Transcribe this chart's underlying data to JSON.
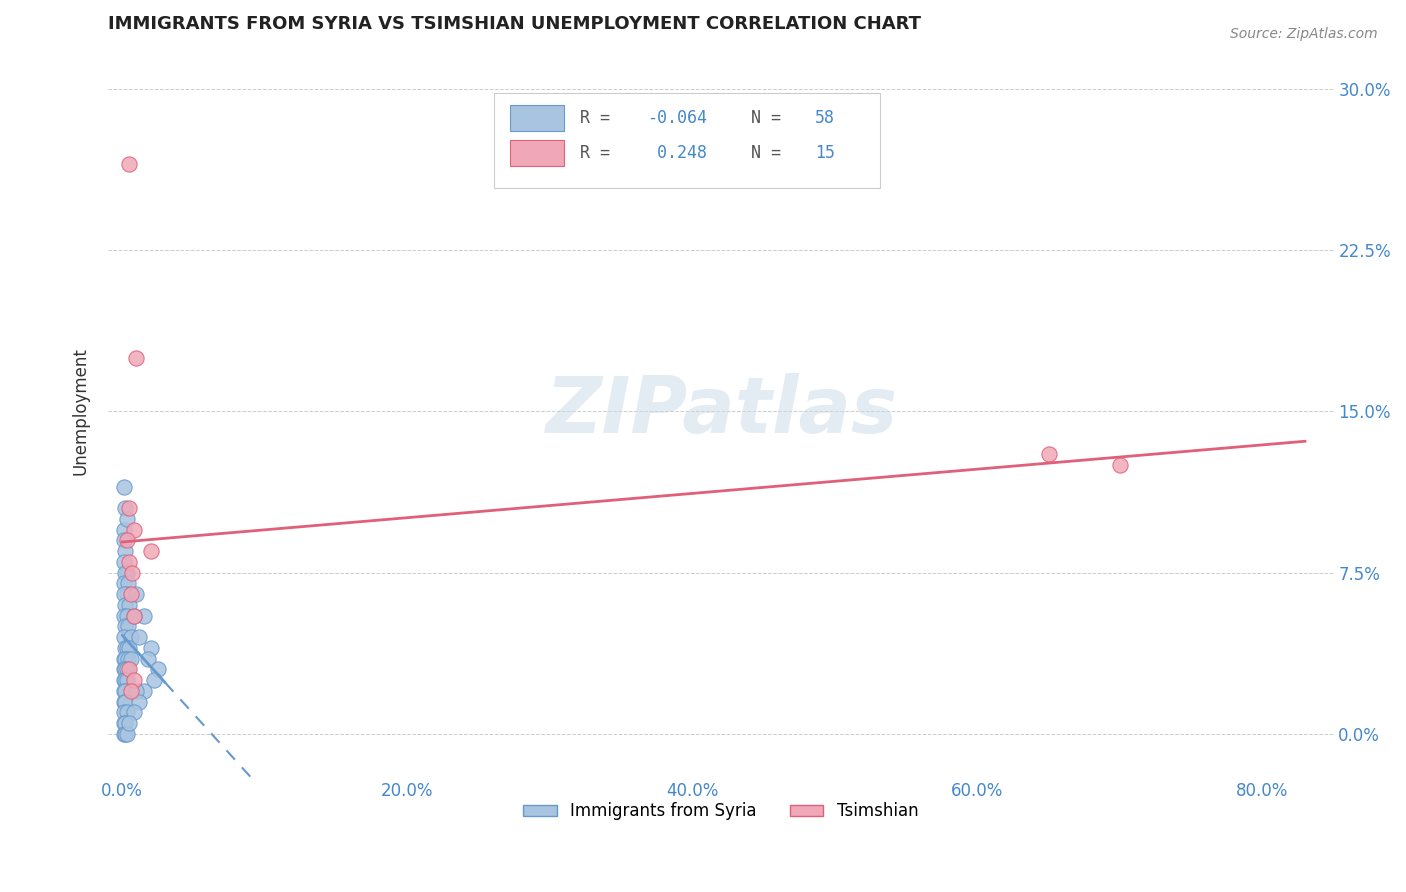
{
  "title": "IMMIGRANTS FROM SYRIA VS TSIMSHIAN UNEMPLOYMENT CORRELATION CHART",
  "source": "Source: ZipAtlas.com",
  "xlabel_tick_vals": [
    0.0,
    0.2,
    0.4,
    0.6,
    0.8
  ],
  "ylabel_tick_vals": [
    0.0,
    0.075,
    0.15,
    0.225,
    0.3
  ],
  "ylim": [
    -0.02,
    0.32
  ],
  "xlim": [
    -0.01,
    0.85
  ],
  "blue_color": "#a8c4e0",
  "pink_color": "#f0a8b8",
  "blue_line_color": "#6699cc",
  "pink_line_color": "#e0607a",
  "blue_scatter": [
    [
      0.001,
      0.115
    ],
    [
      0.002,
      0.105
    ],
    [
      0.001,
      0.095
    ],
    [
      0.003,
      0.1
    ],
    [
      0.001,
      0.09
    ],
    [
      0.002,
      0.085
    ],
    [
      0.001,
      0.08
    ],
    [
      0.003,
      0.075
    ],
    [
      0.002,
      0.075
    ],
    [
      0.001,
      0.07
    ],
    [
      0.004,
      0.07
    ],
    [
      0.003,
      0.065
    ],
    [
      0.001,
      0.065
    ],
    [
      0.002,
      0.06
    ],
    [
      0.005,
      0.06
    ],
    [
      0.001,
      0.055
    ],
    [
      0.003,
      0.055
    ],
    [
      0.002,
      0.05
    ],
    [
      0.004,
      0.05
    ],
    [
      0.001,
      0.045
    ],
    [
      0.006,
      0.045
    ],
    [
      0.002,
      0.04
    ],
    [
      0.003,
      0.04
    ],
    [
      0.005,
      0.04
    ],
    [
      0.001,
      0.035
    ],
    [
      0.002,
      0.035
    ],
    [
      0.004,
      0.035
    ],
    [
      0.006,
      0.035
    ],
    [
      0.001,
      0.03
    ],
    [
      0.002,
      0.03
    ],
    [
      0.003,
      0.03
    ],
    [
      0.001,
      0.025
    ],
    [
      0.002,
      0.025
    ],
    [
      0.003,
      0.025
    ],
    [
      0.001,
      0.02
    ],
    [
      0.002,
      0.02
    ],
    [
      0.001,
      0.015
    ],
    [
      0.002,
      0.015
    ],
    [
      0.001,
      0.01
    ],
    [
      0.003,
      0.01
    ],
    [
      0.001,
      0.005
    ],
    [
      0.002,
      0.005
    ],
    [
      0.001,
      0.0
    ],
    [
      0.002,
      0.0
    ],
    [
      0.003,
      0.0
    ],
    [
      0.01,
      0.065
    ],
    [
      0.015,
      0.055
    ],
    [
      0.012,
      0.045
    ],
    [
      0.008,
      0.055
    ],
    [
      0.02,
      0.04
    ],
    [
      0.018,
      0.035
    ],
    [
      0.025,
      0.03
    ],
    [
      0.022,
      0.025
    ],
    [
      0.015,
      0.02
    ],
    [
      0.01,
      0.02
    ],
    [
      0.012,
      0.015
    ],
    [
      0.008,
      0.01
    ],
    [
      0.005,
      0.005
    ]
  ],
  "pink_scatter": [
    [
      0.005,
      0.265
    ],
    [
      0.01,
      0.175
    ],
    [
      0.005,
      0.105
    ],
    [
      0.008,
      0.095
    ],
    [
      0.003,
      0.09
    ],
    [
      0.02,
      0.085
    ],
    [
      0.005,
      0.08
    ],
    [
      0.007,
      0.075
    ],
    [
      0.006,
      0.065
    ],
    [
      0.008,
      0.055
    ],
    [
      0.65,
      0.13
    ],
    [
      0.7,
      0.125
    ],
    [
      0.005,
      0.03
    ],
    [
      0.008,
      0.025
    ],
    [
      0.006,
      0.02
    ]
  ],
  "watermark": "ZIPatlas",
  "ylabel": "Unemployment",
  "legend_labels": [
    "Immigrants from Syria",
    "Tsimshian"
  ],
  "grid_color": "#cccccc",
  "title_fontsize": 13,
  "axis_tick_fontsize": 12
}
